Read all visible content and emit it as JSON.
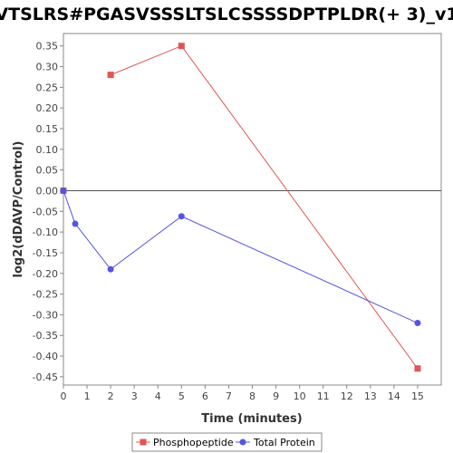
{
  "chart_data": {
    "type": "line",
    "title": "VTSLRS#PGASVSSSLTSLCSSSSDPTPLDR(+ 3)_v1",
    "xlabel": "Time (minutes)",
    "ylabel": "log2(dDAVP/Control)",
    "xlim": [
      0,
      16
    ],
    "ylim": [
      -0.47,
      0.38
    ],
    "x_ticks": [
      0,
      1,
      2,
      3,
      4,
      5,
      6,
      7,
      8,
      9,
      10,
      11,
      12,
      13,
      14,
      15
    ],
    "y_ticks": [
      0.35,
      0.3,
      0.25,
      0.2,
      0.15,
      0.1,
      0.05,
      0.0,
      -0.05,
      -0.1,
      -0.15,
      -0.2,
      -0.25,
      -0.3,
      -0.35,
      -0.4,
      -0.45
    ],
    "legend_position": "bottom",
    "series": [
      {
        "name": "Phosphopeptide",
        "color": "#e05555",
        "marker": "square",
        "points": [
          [
            0,
            0.0
          ],
          [
            2,
            0.28
          ],
          [
            5,
            0.35
          ],
          [
            15,
            -0.43
          ]
        ],
        "segments": [
          [
            [
              2,
              0.28
            ],
            [
              5,
              0.35
            ],
            [
              15,
              -0.43
            ]
          ]
        ]
      },
      {
        "name": "Total Protein",
        "color": "#5555e0",
        "marker": "circle",
        "points": [
          [
            0,
            0.0
          ],
          [
            0.5,
            -0.08
          ],
          [
            2,
            -0.19
          ],
          [
            5,
            -0.062
          ],
          [
            15,
            -0.32
          ]
        ],
        "segments": [
          [
            [
              0,
              0.0
            ],
            [
              0.5,
              -0.08
            ],
            [
              2,
              -0.19
            ],
            [
              5,
              -0.062
            ],
            [
              15,
              -0.32
            ]
          ]
        ]
      }
    ]
  }
}
